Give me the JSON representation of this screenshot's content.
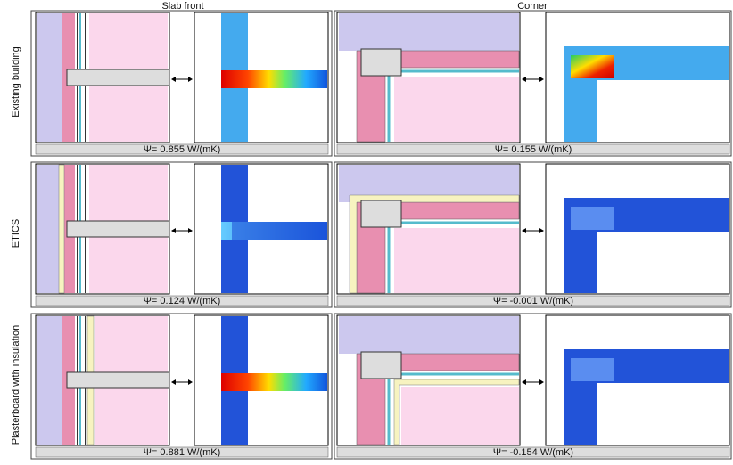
{
  "columns": [
    "Slab front",
    "Corner"
  ],
  "rows": [
    {
      "label": "Existing building",
      "slab_psi": "Ψ= 0.855 W/(mK)",
      "corner_psi": "Ψ= 0.155 W/(mK)"
    },
    {
      "label": "ETICS",
      "slab_psi": "Ψ= 0.124 W/(mK)",
      "corner_psi": "Ψ= -0.001 W/(mK)"
    },
    {
      "label": "Plasterboard with insulation",
      "slab_psi": "Ψ= 0.881 W/(mK)",
      "corner_psi": "Ψ= -0.154 W/(mK)"
    }
  ]
}
